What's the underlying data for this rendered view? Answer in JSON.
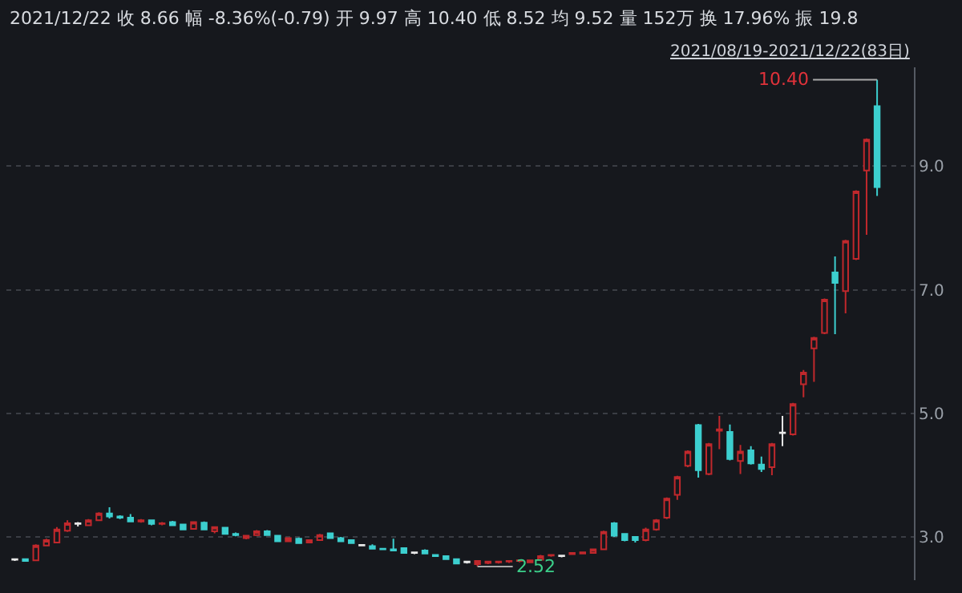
{
  "chart_data": {
    "type": "candlestick",
    "title": "2021/12/22 收 8.66 幅 -8.36%(-0.79) 开 9.97 高 10.40 低 8.52 均 9.52 量 152万 换 17.96% 振 19.8",
    "subtitle": "2021/08/19-2021/12/22(83日)",
    "categories": [
      null,
      null,
      null,
      null,
      null,
      null,
      null,
      null,
      null,
      null,
      null,
      null,
      null,
      null,
      null,
      null,
      null,
      null,
      null,
      null,
      null,
      null,
      null,
      null,
      null,
      null,
      null,
      null,
      null,
      null,
      null,
      null,
      null,
      null,
      null,
      null,
      null,
      null,
      null,
      null,
      null,
      null,
      null,
      null,
      null,
      null,
      null,
      null,
      null,
      null,
      null,
      null,
      null,
      null,
      null,
      null,
      null,
      null,
      null,
      null,
      null,
      null,
      null,
      null,
      null,
      null,
      null,
      null,
      null,
      null,
      null,
      null,
      null,
      null,
      null,
      null,
      null,
      null,
      null,
      null,
      null,
      null,
      null
    ],
    "ohlc": [
      [
        2.63,
        2.65,
        2.61,
        2.64
      ],
      [
        2.64,
        2.65,
        2.6,
        2.61
      ],
      [
        2.62,
        2.88,
        2.61,
        2.86
      ],
      [
        2.86,
        2.97,
        2.85,
        2.95
      ],
      [
        2.91,
        3.16,
        2.9,
        3.12
      ],
      [
        3.1,
        3.27,
        3.08,
        3.22
      ],
      [
        3.21,
        3.24,
        3.17,
        3.22
      ],
      [
        3.19,
        3.29,
        3.18,
        3.27
      ],
      [
        3.27,
        3.4,
        3.26,
        3.38
      ],
      [
        3.38,
        3.48,
        3.3,
        3.33
      ],
      [
        3.33,
        3.35,
        3.29,
        3.31
      ],
      [
        3.31,
        3.37,
        3.24,
        3.25
      ],
      [
        3.25,
        3.29,
        3.23,
        3.27
      ],
      [
        3.27,
        3.28,
        3.19,
        3.21
      ],
      [
        3.21,
        3.24,
        3.19,
        3.22
      ],
      [
        3.24,
        3.26,
        3.18,
        3.19
      ],
      [
        3.2,
        3.21,
        3.11,
        3.12
      ],
      [
        3.13,
        3.25,
        3.12,
        3.24
      ],
      [
        3.23,
        3.25,
        3.11,
        3.12
      ],
      [
        3.09,
        3.17,
        3.06,
        3.16
      ],
      [
        3.15,
        3.16,
        3.04,
        3.05
      ],
      [
        3.05,
        3.07,
        3.01,
        3.03
      ],
      [
        2.98,
        3.03,
        2.96,
        3.02
      ],
      [
        3.03,
        3.11,
        3.02,
        3.09
      ],
      [
        3.09,
        3.11,
        3.02,
        3.03
      ],
      [
        3.02,
        3.03,
        2.92,
        2.93
      ],
      [
        2.93,
        2.99,
        2.92,
        2.98
      ],
      [
        2.97,
        2.99,
        2.89,
        2.9
      ],
      [
        2.91,
        2.96,
        2.9,
        2.95
      ],
      [
        2.95,
        3.05,
        2.94,
        3.03
      ],
      [
        3.06,
        3.07,
        2.97,
        2.98
      ],
      [
        2.98,
        3.0,
        2.92,
        2.93
      ],
      [
        2.95,
        2.96,
        2.89,
        2.9
      ],
      [
        2.86,
        2.88,
        2.85,
        2.87
      ],
      [
        2.85,
        2.88,
        2.8,
        2.81
      ],
      [
        2.81,
        2.82,
        2.79,
        2.8
      ],
      [
        2.8,
        2.97,
        2.77,
        2.78
      ],
      [
        2.82,
        2.83,
        2.73,
        2.74
      ],
      [
        2.74,
        2.76,
        2.72,
        2.75
      ],
      [
        2.78,
        2.8,
        2.72,
        2.73
      ],
      [
        2.71,
        2.72,
        2.68,
        2.69
      ],
      [
        2.69,
        2.7,
        2.63,
        2.64
      ],
      [
        2.64,
        2.65,
        2.56,
        2.57
      ],
      [
        2.59,
        2.61,
        2.57,
        2.6
      ],
      [
        2.56,
        2.62,
        2.52,
        2.61
      ],
      [
        2.58,
        2.61,
        2.56,
        2.6
      ],
      [
        2.59,
        2.61,
        2.57,
        2.6
      ],
      [
        2.6,
        2.62,
        2.58,
        2.61
      ],
      [
        2.61,
        2.63,
        2.59,
        2.62
      ],
      [
        2.59,
        2.63,
        2.58,
        2.62
      ],
      [
        2.63,
        2.71,
        2.62,
        2.69
      ],
      [
        2.7,
        2.72,
        2.68,
        2.71
      ],
      [
        2.69,
        2.71,
        2.67,
        2.7
      ],
      [
        2.72,
        2.75,
        2.71,
        2.74
      ],
      [
        2.73,
        2.76,
        2.72,
        2.75
      ],
      [
        2.74,
        2.81,
        2.73,
        2.8
      ],
      [
        2.8,
        3.1,
        2.79,
        3.08
      ],
      [
        3.22,
        3.24,
        3.0,
        3.02
      ],
      [
        3.05,
        3.06,
        2.93,
        2.95
      ],
      [
        3.0,
        3.01,
        2.91,
        2.95
      ],
      [
        2.95,
        3.15,
        2.93,
        3.12
      ],
      [
        3.12,
        3.29,
        3.1,
        3.27
      ],
      [
        3.31,
        3.64,
        3.29,
        3.62
      ],
      [
        3.68,
        3.99,
        3.6,
        3.97
      ],
      [
        4.15,
        4.4,
        4.13,
        4.38
      ],
      [
        4.81,
        4.83,
        3.96,
        4.08
      ],
      [
        4.02,
        4.52,
        4.0,
        4.5
      ],
      [
        4.72,
        4.96,
        4.42,
        4.74
      ],
      [
        4.7,
        4.82,
        4.24,
        4.26
      ],
      [
        4.23,
        4.49,
        4.02,
        4.38
      ],
      [
        4.4,
        4.47,
        4.17,
        4.19
      ],
      [
        4.17,
        4.3,
        4.05,
        4.1
      ],
      [
        4.13,
        4.52,
        4.0,
        4.5
      ],
      [
        4.68,
        4.96,
        4.47,
        4.69
      ],
      [
        4.66,
        5.17,
        4.64,
        5.15
      ],
      [
        5.47,
        5.7,
        5.26,
        5.66
      ],
      [
        6.05,
        6.24,
        5.51,
        6.22
      ],
      [
        6.3,
        6.86,
        6.28,
        6.84
      ],
      [
        7.28,
        7.54,
        6.28,
        7.11
      ],
      [
        6.98,
        7.81,
        6.62,
        7.79
      ],
      [
        7.5,
        8.61,
        7.48,
        8.59
      ],
      [
        8.93,
        9.45,
        7.89,
        9.43
      ],
      [
        9.97,
        10.4,
        8.52,
        8.66
      ]
    ],
    "colors": [
      "#e8e8e8",
      "#3ccfcf",
      "#c0282c",
      "#c0282c",
      "#c0282c",
      "#c0282c",
      "#e8e8e8",
      "#c0282c",
      "#c0282c",
      "#3ccfcf",
      "#3ccfcf",
      "#3ccfcf",
      "#c0282c",
      "#3ccfcf",
      "#c0282c",
      "#3ccfcf",
      "#3ccfcf",
      "#c0282c",
      "#3ccfcf",
      "#c0282c",
      "#3ccfcf",
      "#3ccfcf",
      "#c0282c",
      "#c0282c",
      "#3ccfcf",
      "#3ccfcf",
      "#c0282c",
      "#3ccfcf",
      "#c0282c",
      "#c0282c",
      "#3ccfcf",
      "#3ccfcf",
      "#3ccfcf",
      "#e8e8e8",
      "#3ccfcf",
      "#3ccfcf",
      "#3ccfcf",
      "#3ccfcf",
      "#e8e8e8",
      "#3ccfcf",
      "#3ccfcf",
      "#3ccfcf",
      "#3ccfcf",
      "#e8e8e8",
      "#c0282c",
      "#c0282c",
      "#c0282c",
      "#c0282c",
      "#c0282c",
      "#c0282c",
      "#c0282c",
      "#c0282c",
      "#e8e8e8",
      "#c0282c",
      "#c0282c",
      "#c0282c",
      "#c0282c",
      "#3ccfcf",
      "#3ccfcf",
      "#3ccfcf",
      "#c0282c",
      "#c0282c",
      "#c0282c",
      "#c0282c",
      "#c0282c",
      "#3ccfcf",
      "#c0282c",
      "#c0282c",
      "#3ccfcf",
      "#c0282c",
      "#3ccfcf",
      "#3ccfcf",
      "#c0282c",
      "#e8e8e8",
      "#c0282c",
      "#c0282c",
      "#c0282c",
      "#c0282c",
      "#3ccfcf",
      "#c0282c",
      "#c0282c",
      "#c0282c",
      "#3ccfcf"
    ],
    "ylim": [
      2.3,
      10.6
    ],
    "yticks": [
      {
        "value": 3,
        "label": "3.0"
      },
      {
        "value": 5,
        "label": "5.0"
      },
      {
        "value": 7,
        "label": "7.0"
      },
      {
        "value": 9,
        "label": "9.0"
      }
    ],
    "grid": "y",
    "annotations": [
      "10.40",
      "2.52"
    ]
  }
}
